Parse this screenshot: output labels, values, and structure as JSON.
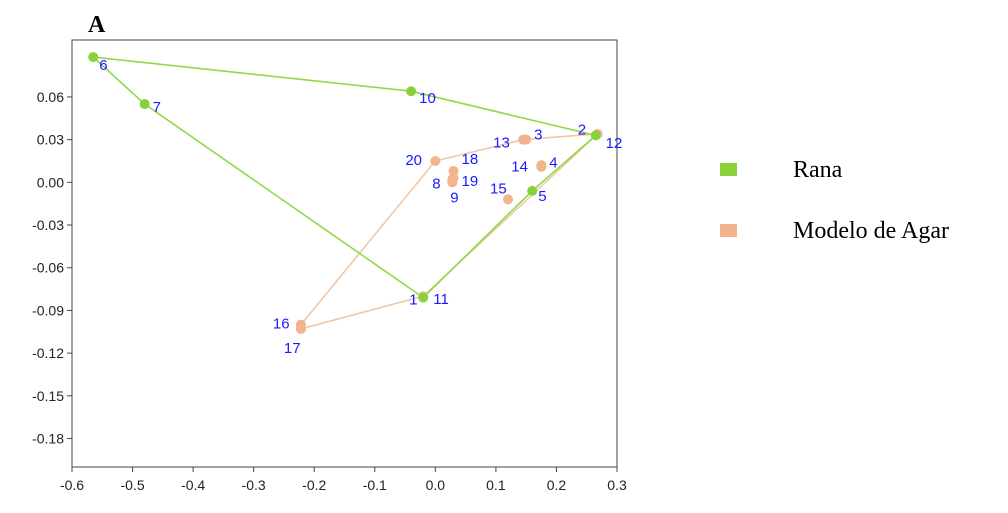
{
  "chart_data": {
    "type": "scatter",
    "panel_label": "A",
    "title": "",
    "xlabel": "",
    "ylabel": "",
    "xlim": [
      -0.6,
      0.3
    ],
    "ylim": [
      -0.2,
      0.1
    ],
    "x_ticks": [
      "-0.6",
      "-0.5",
      "-0.4",
      "-0.3",
      "-0.2",
      "-0.1",
      "0.0",
      "0.1",
      "0.2",
      "0.3"
    ],
    "x_tick_values": [
      -0.6,
      -0.5,
      -0.4,
      -0.3,
      -0.2,
      -0.1,
      0.0,
      0.1,
      0.2,
      0.3
    ],
    "y_ticks": [
      "0.06",
      "0.03",
      "0.00",
      "-0.03",
      "-0.06",
      "-0.09",
      "-0.12",
      "-0.15",
      "-0.18"
    ],
    "y_tick_values": [
      0.06,
      0.03,
      0.0,
      -0.03,
      -0.06,
      -0.09,
      -0.12,
      -0.15,
      -0.18
    ],
    "grid": false,
    "legend_position": "right",
    "series": [
      {
        "name": "Rana",
        "color": "#88d13a",
        "line_color": "#8fd94a",
        "points": [
          {
            "label": "1",
            "x": -0.02,
            "y": -0.081
          },
          {
            "label": "2",
            "x": 0.265,
            "y": 0.033
          },
          {
            "label": "5",
            "x": 0.16,
            "y": -0.006
          },
          {
            "label": "6",
            "x": -0.565,
            "y": 0.088
          },
          {
            "label": "7",
            "x": -0.48,
            "y": 0.055
          },
          {
            "label": "10",
            "x": -0.04,
            "y": 0.064
          }
        ],
        "hull_labels": [
          "6",
          "10",
          "2",
          "5",
          "1",
          "7"
        ]
      },
      {
        "name": "Modelo de Agar",
        "color": "#f2b48c",
        "line_color": "#f0c8a8",
        "points": [
          {
            "label": "3",
            "x": 0.15,
            "y": 0.03
          },
          {
            "label": "4",
            "x": 0.175,
            "y": 0.012
          },
          {
            "label": "8",
            "x": 0.028,
            "y": 0.002
          },
          {
            "label": "9",
            "x": 0.028,
            "y": 0.0
          },
          {
            "label": "11",
            "x": -0.02,
            "y": -0.08
          },
          {
            "label": "12",
            "x": 0.268,
            "y": 0.034
          },
          {
            "label": "13",
            "x": 0.145,
            "y": 0.03
          },
          {
            "label": "14",
            "x": 0.175,
            "y": 0.011
          },
          {
            "label": "15",
            "x": 0.12,
            "y": -0.012
          },
          {
            "label": "16",
            "x": -0.222,
            "y": -0.1
          },
          {
            "label": "17",
            "x": -0.222,
            "y": -0.103
          },
          {
            "label": "18",
            "x": 0.03,
            "y": 0.008
          },
          {
            "label": "19",
            "x": 0.03,
            "y": 0.003
          },
          {
            "label": "20",
            "x": 0.0,
            "y": 0.015
          }
        ],
        "hull_labels": [
          "20",
          "13",
          "12",
          "11",
          "17",
          "16"
        ]
      }
    ]
  }
}
